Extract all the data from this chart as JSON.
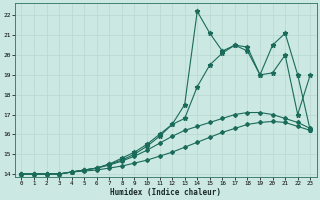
{
  "background_color": "#cce8e2",
  "grid_color": "#b8d8d0",
  "line_color": "#1a6b5a",
  "xlabel": "Humidex (Indice chaleur)",
  "xlim": [
    -0.5,
    23.5
  ],
  "ylim": [
    13.85,
    22.6
  ],
  "xticks": [
    0,
    1,
    2,
    3,
    4,
    5,
    6,
    7,
    8,
    9,
    10,
    11,
    12,
    13,
    14,
    15,
    16,
    17,
    18,
    19,
    20,
    21,
    22,
    23
  ],
  "yticks": [
    14,
    15,
    16,
    17,
    18,
    19,
    20,
    21,
    22
  ],
  "line1_x": [
    0,
    1,
    2,
    3,
    4,
    5,
    6,
    7,
    8,
    9,
    10,
    11,
    12,
    13,
    14,
    15,
    16,
    17,
    18,
    19,
    20,
    21,
    22,
    23
  ],
  "line1_y": [
    14,
    14,
    14,
    14,
    14.1,
    14.15,
    14.2,
    14.3,
    14.4,
    14.55,
    14.7,
    14.9,
    15.1,
    15.35,
    15.6,
    15.85,
    16.1,
    16.3,
    16.5,
    16.6,
    16.65,
    16.6,
    16.4,
    16.2
  ],
  "line2_x": [
    0,
    1,
    2,
    3,
    4,
    5,
    6,
    7,
    8,
    9,
    10,
    11,
    12,
    13,
    14,
    15,
    16,
    17,
    18,
    19,
    20,
    21,
    22,
    23
  ],
  "line2_y": [
    14,
    14,
    14,
    14,
    14.1,
    14.2,
    14.3,
    14.45,
    14.65,
    14.9,
    15.2,
    15.55,
    15.9,
    16.2,
    16.4,
    16.6,
    16.8,
    17.0,
    17.1,
    17.1,
    17.0,
    16.8,
    16.6,
    16.3
  ],
  "line3_x": [
    0,
    1,
    2,
    3,
    4,
    5,
    6,
    7,
    8,
    9,
    10,
    11,
    12,
    13,
    14,
    15,
    16,
    17,
    18,
    19,
    20,
    21,
    22,
    23
  ],
  "line3_y": [
    14,
    14,
    14,
    14,
    14.1,
    14.2,
    14.3,
    14.5,
    14.7,
    15.0,
    15.4,
    15.9,
    16.5,
    17.5,
    22.2,
    21.1,
    20.2,
    20.5,
    20.2,
    19.0,
    20.5,
    21.1,
    19.0,
    16.2
  ],
  "line4_x": [
    0,
    1,
    2,
    3,
    4,
    5,
    6,
    7,
    8,
    9,
    10,
    11,
    12,
    13,
    14,
    15,
    16,
    17,
    18,
    19,
    20,
    21,
    22,
    23
  ],
  "line4_y": [
    14,
    14,
    14,
    14,
    14.1,
    14.2,
    14.3,
    14.5,
    14.8,
    15.1,
    15.5,
    16.0,
    16.5,
    16.8,
    18.4,
    19.5,
    20.1,
    20.5,
    20.4,
    19.0,
    19.1,
    20.0,
    17.0,
    19.0
  ],
  "marker_star": "*",
  "marker_diamond": "D",
  "markersize_star": 3.5,
  "markersize_diamond": 2.0,
  "linewidth": 0.8
}
